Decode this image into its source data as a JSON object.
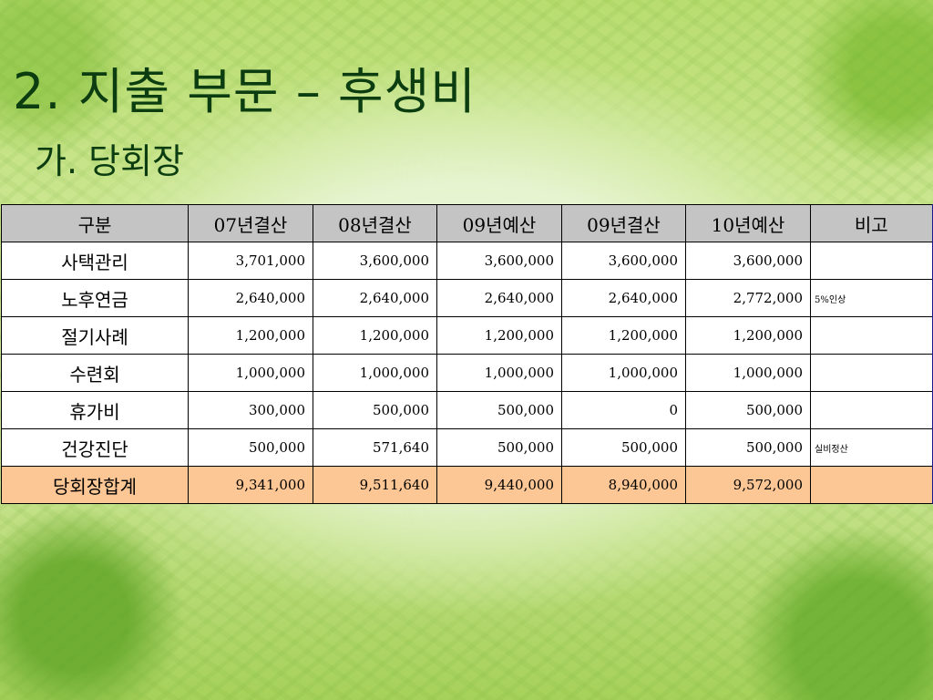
{
  "slide": {
    "title": "2. 지출 부문 – 후생비",
    "subtitle": "가. 당회장"
  },
  "table": {
    "headers": [
      "구분",
      "07년결산",
      "08년결산",
      "09년예산",
      "09년결산",
      "10년예산",
      "비고"
    ],
    "rows": [
      {
        "category": "사택관리",
        "values": [
          "3,701,000",
          "3,600,000",
          "3,600,000",
          "3,600,000",
          "3,600,000"
        ],
        "note": ""
      },
      {
        "category": "노후연금",
        "values": [
          "2,640,000",
          "2,640,000",
          "2,640,000",
          "2,640,000",
          "2,772,000"
        ],
        "note": "5%인상"
      },
      {
        "category": "절기사례",
        "values": [
          "1,200,000",
          "1,200,000",
          "1,200,000",
          "1,200,000",
          "1,200,000"
        ],
        "note": ""
      },
      {
        "category": "수련회",
        "values": [
          "1,000,000",
          "1,000,000",
          "1,000,000",
          "1,000,000",
          "1,000,000"
        ],
        "note": ""
      },
      {
        "category": "휴가비",
        "values": [
          "300,000",
          "500,000",
          "500,000",
          "0",
          "500,000"
        ],
        "note": ""
      },
      {
        "category": "건강진단",
        "values": [
          "500,000",
          "571,640",
          "500,000",
          "500,000",
          "500,000"
        ],
        "note": "실비정산"
      }
    ],
    "total": {
      "category": "당회장합계",
      "values": [
        "9,341,000",
        "9,511,640",
        "9,440,000",
        "8,940,000",
        "9,572,000"
      ],
      "note": ""
    }
  },
  "colors": {
    "title": "#0b3d10",
    "header_bg": "#c4c4c4",
    "total_bg": "#fdc795"
  }
}
